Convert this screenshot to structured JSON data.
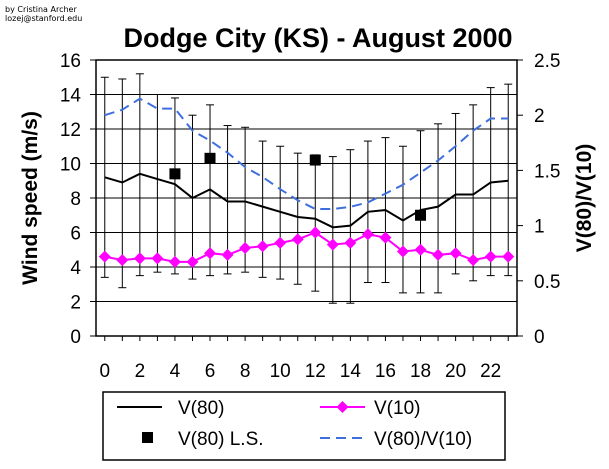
{
  "credit": {
    "line1": "by Cristina Archer",
    "line2": "lozej@stanford.edu"
  },
  "chart_data": {
    "type": "line",
    "title": "Dodge City (KS) - August 2000",
    "xlabel": "",
    "ylabel": "Wind speed (m/s)",
    "y2label": "V(80)/V(10)",
    "x": [
      0,
      1,
      2,
      3,
      4,
      5,
      6,
      7,
      8,
      9,
      10,
      11,
      12,
      13,
      14,
      15,
      16,
      17,
      18,
      19,
      20,
      21,
      22,
      23
    ],
    "xlim": [
      -0.5,
      23.5
    ],
    "xticks": [
      0,
      2,
      4,
      6,
      8,
      10,
      12,
      14,
      16,
      18,
      20,
      22
    ],
    "ylim": [
      0,
      16
    ],
    "yticks": [
      0,
      2,
      4,
      6,
      8,
      10,
      12,
      14,
      16
    ],
    "y2lim": [
      0,
      2.5
    ],
    "y2ticks": [
      0,
      0.5,
      1,
      1.5,
      2,
      2.5
    ],
    "grid": "horizontal",
    "series": [
      {
        "name": "V(80)",
        "axis": "left",
        "style": "solid",
        "color": "#000000",
        "values": [
          9.2,
          8.9,
          9.4,
          9.1,
          8.8,
          8.0,
          8.5,
          7.8,
          7.8,
          7.5,
          7.2,
          6.9,
          6.8,
          6.3,
          6.4,
          7.2,
          7.3,
          6.7,
          7.3,
          7.5,
          8.2,
          8.2,
          8.9,
          9.0
        ],
        "error_low": [
          3.4,
          2.8,
          3.5,
          3.7,
          3.6,
          3.3,
          3.5,
          3.6,
          3.7,
          3.4,
          3.3,
          3.0,
          2.6,
          1.9,
          1.9,
          3.1,
          3.1,
          2.5,
          2.5,
          2.5,
          3.6,
          3.2,
          3.5,
          3.5
        ],
        "error_high": [
          15.0,
          14.9,
          15.2,
          14.0,
          13.8,
          12.8,
          13.4,
          12.2,
          12.1,
          11.3,
          11.0,
          10.6,
          10.5,
          10.4,
          10.8,
          11.3,
          11.5,
          11.0,
          11.9,
          12.3,
          12.9,
          13.4,
          14.4,
          14.6
        ]
      },
      {
        "name": "V(10)",
        "axis": "left",
        "style": "diamond-markers",
        "color": "#ff00ff",
        "values": [
          4.6,
          4.4,
          4.5,
          4.5,
          4.3,
          4.3,
          4.8,
          4.7,
          5.1,
          5.2,
          5.4,
          5.6,
          6.0,
          5.3,
          5.4,
          5.9,
          5.7,
          4.9,
          5.0,
          4.7,
          4.8,
          4.4,
          4.6,
          4.6
        ]
      },
      {
        "name": "V(80) L.S.",
        "axis": "left",
        "style": "square-markers",
        "color": "#000000",
        "x": [
          4,
          6,
          12,
          18
        ],
        "values": [
          9.4,
          10.3,
          10.2,
          7.0
        ]
      },
      {
        "name": "V(80)/V(10)",
        "axis": "right",
        "style": "dashed",
        "color": "#3f6fdf",
        "values": [
          2.0,
          2.05,
          2.15,
          2.06,
          2.06,
          1.86,
          1.77,
          1.66,
          1.53,
          1.44,
          1.33,
          1.23,
          1.15,
          1.15,
          1.17,
          1.21,
          1.29,
          1.37,
          1.48,
          1.59,
          1.72,
          1.86,
          1.97,
          1.97
        ]
      }
    ],
    "legend": {
      "placement": "bottom",
      "entries": [
        "V(80)",
        "V(10)",
        "V(80) L.S.",
        "V(80)/V(10)"
      ]
    }
  }
}
